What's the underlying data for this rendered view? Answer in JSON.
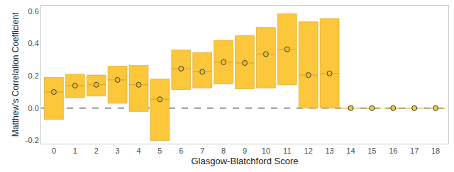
{
  "chart_data": {
    "type": "interval",
    "x_label": "Glasgow-Blatchford Score",
    "y_label": "Matthew's Correlation Coefficient",
    "categories": [
      "0",
      "1",
      "2",
      "3",
      "4",
      "5",
      "6",
      "7",
      "8",
      "9",
      "10",
      "11",
      "12",
      "13",
      "14",
      "15",
      "16",
      "17",
      "18"
    ],
    "values": [
      0.1,
      0.14,
      0.145,
      0.175,
      0.145,
      0.055,
      0.245,
      0.225,
      0.285,
      0.28,
      0.335,
      0.365,
      0.205,
      0.215,
      0,
      0,
      0,
      0,
      0
    ],
    "lower": [
      -0.07,
      0.065,
      0.075,
      0.03,
      -0.02,
      -0.2,
      0.115,
      0.125,
      0.15,
      0.12,
      0.125,
      0.145,
      0.0,
      0.0,
      0,
      0,
      0,
      0,
      0
    ],
    "upper": [
      0.19,
      0.21,
      0.205,
      0.26,
      0.265,
      0.18,
      0.36,
      0.345,
      0.42,
      0.45,
      0.5,
      0.585,
      0.535,
      0.555,
      0,
      0,
      0,
      0,
      0
    ],
    "color": "#fcc73a",
    "reference_line": 0,
    "ylim": [
      -0.22,
      0.635
    ],
    "yticks": [
      -0.2,
      {
        "value": 0,
        "label": "0.0"
      },
      0.2,
      0.4,
      0.6
    ],
    "grid": false
  }
}
